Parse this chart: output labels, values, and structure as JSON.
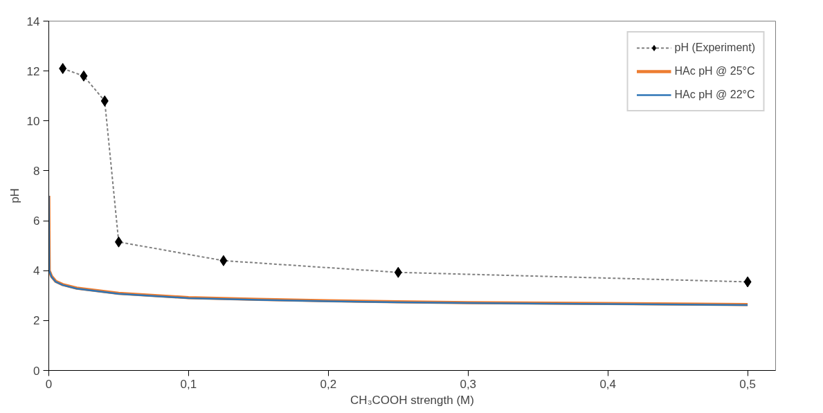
{
  "chart_data": {
    "type": "line",
    "xlabel": "CH₃COOH strength (M)",
    "ylabel": "pH",
    "xlim": [
      0,
      0.52
    ],
    "ylim": [
      0,
      14
    ],
    "xticks": [
      0,
      {
        "value": 0.1,
        "label": "0,1"
      },
      {
        "value": 0.2,
        "label": "0,2"
      },
      {
        "value": 0.3,
        "label": "0,3"
      },
      {
        "value": 0.4,
        "label": "0,4"
      },
      {
        "value": 0.5,
        "label": "0,5"
      }
    ],
    "yticks": [
      0,
      2,
      4,
      6,
      8,
      10,
      12,
      14
    ],
    "grid": false,
    "legend": "top right",
    "series": [
      {
        "name": "pH (Experiment)",
        "color": "#7f7f7f",
        "marker": "diamond",
        "line_style": "dashed",
        "x": [
          0.01,
          0.025,
          0.04,
          0.05,
          0.125,
          0.25,
          0.5
        ],
        "values": [
          12.1,
          11.8,
          10.8,
          5.15,
          4.4,
          3.93,
          3.55
        ]
      },
      {
        "name": "HAc pH @ 25°C",
        "color": "#ed7d31",
        "marker": "none",
        "line_style": "solid",
        "x": [
          0,
          0.0003,
          0.002,
          0.005,
          0.01,
          0.02,
          0.05,
          0.1,
          0.15,
          0.2,
          0.25,
          0.3,
          0.4,
          0.5
        ],
        "values": [
          7.0,
          4.0,
          3.77,
          3.57,
          3.44,
          3.3,
          3.09,
          2.92,
          2.85,
          2.79,
          2.75,
          2.72,
          2.68,
          2.64
        ]
      },
      {
        "name": "HAc pH @ 22°C",
        "color": "#2e75b6",
        "marker": "none",
        "line_style": "solid",
        "x": [
          0,
          0.0003,
          0.002,
          0.005,
          0.01,
          0.02,
          0.05,
          0.1,
          0.15,
          0.2,
          0.25,
          0.3,
          0.4,
          0.5
        ],
        "values": [
          7.0,
          4.0,
          3.75,
          3.55,
          3.42,
          3.28,
          3.07,
          2.9,
          2.83,
          2.77,
          2.73,
          2.7,
          2.66,
          2.62
        ]
      }
    ]
  }
}
